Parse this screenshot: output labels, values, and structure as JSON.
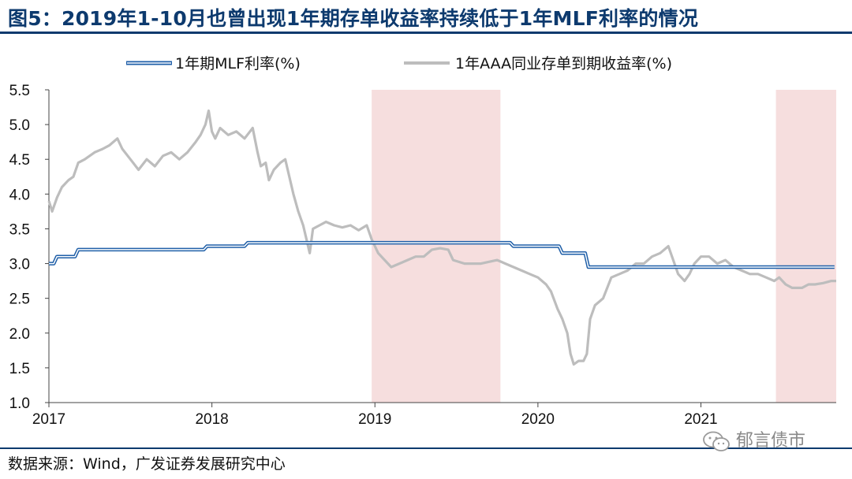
{
  "figure": {
    "title": "图5：2019年1-10月也曾出现1年期存单收益率持续低于1年MLF利率的情况",
    "source": "数据来源：Wind，广发证券发展研究中心",
    "watermark": "郁言债市"
  },
  "chart_data": {
    "type": "line",
    "title": "2019年1-10月也曾出现1年期存单收益率持续低于1年MLF利率的情况",
    "xlabel": "",
    "ylabel": "",
    "ylim": [
      1.0,
      5.5
    ],
    "yticks": [
      "1.0",
      "1.5",
      "2.0",
      "2.5",
      "3.0",
      "3.5",
      "4.0",
      "4.5",
      "5.0",
      "5.5"
    ],
    "xlim": [
      2017.0,
      2021.83
    ],
    "xticks": [
      {
        "value": 2017,
        "label": "2017"
      },
      {
        "value": 2018,
        "label": "2018"
      },
      {
        "value": 2019,
        "label": "2019"
      },
      {
        "value": 2020,
        "label": "2020"
      },
      {
        "value": 2021,
        "label": "2021"
      }
    ],
    "legend_position": "top",
    "shaded_periods": [
      {
        "start": 2018.98,
        "end": 2019.77
      },
      {
        "start": 2021.46,
        "end": 2021.83
      }
    ],
    "series": [
      {
        "name": "1年期MLF利率(%)",
        "style": "double-blue",
        "color": "#1f5fa8",
        "step": true,
        "points": [
          [
            2017.0,
            3.0
          ],
          [
            2017.03,
            3.1
          ],
          [
            2017.16,
            3.2
          ],
          [
            2017.95,
            3.25
          ],
          [
            2018.2,
            3.3
          ],
          [
            2018.3,
            3.3
          ],
          [
            2019.6,
            3.3
          ],
          [
            2019.83,
            3.25
          ],
          [
            2020.13,
            3.15
          ],
          [
            2020.29,
            2.95
          ],
          [
            2021.8,
            2.95
          ]
        ]
      },
      {
        "name": "1年AAA同业存单到期收益率(%)",
        "style": "gray",
        "color": "#bdbdbd",
        "step": false,
        "points": [
          [
            2017.0,
            3.9
          ],
          [
            2017.02,
            3.75
          ],
          [
            2017.05,
            3.95
          ],
          [
            2017.08,
            4.1
          ],
          [
            2017.12,
            4.2
          ],
          [
            2017.15,
            4.25
          ],
          [
            2017.18,
            4.45
          ],
          [
            2017.22,
            4.5
          ],
          [
            2017.28,
            4.6
          ],
          [
            2017.33,
            4.65
          ],
          [
            2017.37,
            4.7
          ],
          [
            2017.42,
            4.8
          ],
          [
            2017.45,
            4.65
          ],
          [
            2017.5,
            4.5
          ],
          [
            2017.55,
            4.35
          ],
          [
            2017.6,
            4.5
          ],
          [
            2017.65,
            4.4
          ],
          [
            2017.7,
            4.55
          ],
          [
            2017.75,
            4.6
          ],
          [
            2017.8,
            4.5
          ],
          [
            2017.85,
            4.6
          ],
          [
            2017.9,
            4.75
          ],
          [
            2017.93,
            4.85
          ],
          [
            2017.96,
            5.0
          ],
          [
            2017.98,
            5.2
          ],
          [
            2018.0,
            4.9
          ],
          [
            2018.02,
            4.8
          ],
          [
            2018.05,
            4.95
          ],
          [
            2018.1,
            4.85
          ],
          [
            2018.15,
            4.9
          ],
          [
            2018.2,
            4.8
          ],
          [
            2018.25,
            4.95
          ],
          [
            2018.28,
            4.6
          ],
          [
            2018.3,
            4.4
          ],
          [
            2018.33,
            4.45
          ],
          [
            2018.35,
            4.2
          ],
          [
            2018.38,
            4.35
          ],
          [
            2018.42,
            4.45
          ],
          [
            2018.45,
            4.5
          ],
          [
            2018.48,
            4.2
          ],
          [
            2018.5,
            4.0
          ],
          [
            2018.53,
            3.75
          ],
          [
            2018.56,
            3.55
          ],
          [
            2018.58,
            3.35
          ],
          [
            2018.6,
            3.15
          ],
          [
            2018.62,
            3.5
          ],
          [
            2018.66,
            3.55
          ],
          [
            2018.7,
            3.6
          ],
          [
            2018.75,
            3.55
          ],
          [
            2018.8,
            3.52
          ],
          [
            2018.85,
            3.55
          ],
          [
            2018.9,
            3.48
          ],
          [
            2018.95,
            3.55
          ],
          [
            2018.98,
            3.35
          ],
          [
            2019.02,
            3.15
          ],
          [
            2019.06,
            3.05
          ],
          [
            2019.1,
            2.95
          ],
          [
            2019.15,
            3.0
          ],
          [
            2019.2,
            3.05
          ],
          [
            2019.25,
            3.1
          ],
          [
            2019.3,
            3.1
          ],
          [
            2019.35,
            3.2
          ],
          [
            2019.4,
            3.22
          ],
          [
            2019.45,
            3.2
          ],
          [
            2019.48,
            3.05
          ],
          [
            2019.55,
            3.0
          ],
          [
            2019.65,
            3.0
          ],
          [
            2019.75,
            3.05
          ],
          [
            2019.8,
            3.0
          ],
          [
            2019.85,
            2.95
          ],
          [
            2019.9,
            2.9
          ],
          [
            2019.95,
            2.85
          ],
          [
            2020.0,
            2.8
          ],
          [
            2020.05,
            2.7
          ],
          [
            2020.08,
            2.6
          ],
          [
            2020.12,
            2.35
          ],
          [
            2020.15,
            2.2
          ],
          [
            2020.18,
            2.0
          ],
          [
            2020.2,
            1.7
          ],
          [
            2020.22,
            1.55
          ],
          [
            2020.25,
            1.6
          ],
          [
            2020.28,
            1.6
          ],
          [
            2020.3,
            1.7
          ],
          [
            2020.32,
            2.2
          ],
          [
            2020.35,
            2.4
          ],
          [
            2020.4,
            2.5
          ],
          [
            2020.45,
            2.8
          ],
          [
            2020.5,
            2.85
          ],
          [
            2020.55,
            2.9
          ],
          [
            2020.6,
            3.0
          ],
          [
            2020.65,
            3.0
          ],
          [
            2020.7,
            3.1
          ],
          [
            2020.75,
            3.15
          ],
          [
            2020.8,
            3.25
          ],
          [
            2020.83,
            3.05
          ],
          [
            2020.86,
            2.85
          ],
          [
            2020.9,
            2.75
          ],
          [
            2020.93,
            2.85
          ],
          [
            2020.96,
            3.0
          ],
          [
            2021.0,
            3.1
          ],
          [
            2021.05,
            3.1
          ],
          [
            2021.1,
            3.0
          ],
          [
            2021.15,
            3.05
          ],
          [
            2021.2,
            2.95
          ],
          [
            2021.25,
            2.9
          ],
          [
            2021.3,
            2.85
          ],
          [
            2021.35,
            2.85
          ],
          [
            2021.4,
            2.8
          ],
          [
            2021.45,
            2.75
          ],
          [
            2021.48,
            2.8
          ],
          [
            2021.52,
            2.7
          ],
          [
            2021.56,
            2.65
          ],
          [
            2021.62,
            2.65
          ],
          [
            2021.66,
            2.7
          ],
          [
            2021.7,
            2.7
          ],
          [
            2021.75,
            2.72
          ],
          [
            2021.8,
            2.75
          ],
          [
            2021.83,
            2.75
          ]
        ]
      }
    ]
  }
}
